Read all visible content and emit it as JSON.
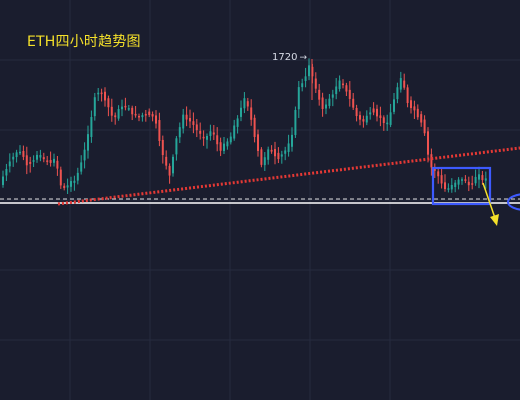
{
  "title": "ETH四小时趋势图",
  "peak_label": "1720",
  "colors": {
    "background": "#1a1d2e",
    "grid": "#262a3f",
    "up": "#26a69a",
    "down": "#ef5350",
    "trendline": "#e53935",
    "box": "#3d5afe",
    "arrow": "#f5e12a",
    "level": "#ffffff"
  },
  "chart_data": {
    "type": "candlestick",
    "symbol": "ETH",
    "interval": "4h",
    "ylim": [
      1390,
      1750
    ],
    "annotations": [
      {
        "type": "peak",
        "value": 1720,
        "text": "1720"
      },
      {
        "type": "rising-trendline",
        "style": "dotted",
        "color": "red"
      },
      {
        "type": "horizontal-support",
        "style": "solid+dashed",
        "color": "white"
      },
      {
        "type": "consolidation-box",
        "color": "blue"
      },
      {
        "type": "breakdown-arrow",
        "direction": "down",
        "color": "yellow"
      }
    ]
  }
}
